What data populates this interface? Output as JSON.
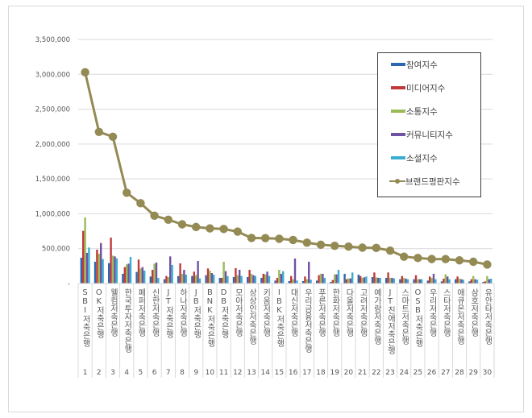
{
  "chart_data": {
    "type": "bar+line",
    "title": "",
    "xlabel": "",
    "ylabel": "",
    "ylim": [
      0,
      3500000
    ],
    "yticks": [
      0,
      500000,
      1000000,
      1500000,
      2000000,
      2500000,
      3000000,
      3500000
    ],
    "ytick_labels": [
      "-",
      "500,000",
      "1,000,000",
      "1,500,000",
      "2,000,000",
      "2,500,000",
      "3,000,000",
      "3,500,000"
    ],
    "grid": true,
    "legend_position": "upper right (inside)",
    "categories": [
      "SBI저축은행",
      "OK저축은행",
      "웰컴저축은행",
      "한국투자저축은행",
      "페퍼저축은행",
      "신한저축은행",
      "JT저축은행",
      "하나저축은행",
      "JB저축은행",
      "BNK저축은행",
      "DB저축은행",
      "모아저축은행",
      "상상인저축은행",
      "키움저축은행",
      "IBK저축은행",
      "대신저축은행",
      "우리금융저축은행",
      "푸른저축은행",
      "한화저축은행",
      "다올저축은행",
      "고려저축은행",
      "예가람저축은행",
      "JT친애저축은행",
      "스마트저축은행",
      "OSB저축은행",
      "우리저축은행",
      "스타저축은행",
      "애큐온저축은행",
      "삼호저축은행",
      "유안타저축은행"
    ],
    "ranks": [
      "1",
      "2",
      "3",
      "4",
      "5",
      "6",
      "7",
      "8",
      "9",
      "10",
      "11",
      "12",
      "13",
      "14",
      "15",
      "16",
      "17",
      "18",
      "19",
      "20",
      "21",
      "22",
      "23",
      "24",
      "25",
      "26",
      "27",
      "28",
      "29",
      "30"
    ],
    "series": [
      {
        "name": "참여지수",
        "type": "bar",
        "color": "#2e67b1",
        "values": [
          370000,
          312000,
          292000,
          139000,
          166000,
          100000,
          61000,
          107000,
          107000,
          119000,
          81000,
          92000,
          92000,
          81000,
          42000,
          35000,
          35000,
          42000,
          23000,
          139000,
          127000,
          92000,
          81000,
          61000,
          61000,
          42000,
          31000,
          61000,
          31000,
          23000
        ]
      },
      {
        "name": "미디어지수",
        "type": "bar",
        "color": "#c0393b",
        "values": [
          755000,
          485000,
          658000,
          235000,
          343000,
          196000,
          107000,
          289000,
          170000,
          216000,
          81000,
          220000,
          196000,
          139000,
          81000,
          107000,
          100000,
          119000,
          50000,
          61000,
          107000,
          158000,
          158000,
          107000,
          119000,
          100000,
          69000,
          100000,
          61000,
          31000
        ]
      },
      {
        "name": "소통지수",
        "type": "bar",
        "color": "#9bbb59",
        "values": [
          947000,
          427000,
          400000,
          274000,
          216000,
          285000,
          92000,
          139000,
          119000,
          185000,
          312000,
          119000,
          139000,
          131000,
          196000,
          61000,
          61000,
          139000,
          131000,
          73000,
          81000,
          89000,
          81000,
          81000,
          61000,
          81000,
          131000,
          69000,
          107000,
          107000
        ]
      },
      {
        "name": "커뮤니티지수",
        "type": "bar",
        "color": "#7151a1",
        "values": [
          440000,
          580000,
          389000,
          285000,
          235000,
          300000,
          389000,
          196000,
          323000,
          150000,
          177000,
          196000,
          119000,
          170000,
          139000,
          358000,
          312000,
          139000,
          131000,
          73000,
          89000,
          81000,
          81000,
          69000,
          61000,
          139000,
          100000,
          61000,
          61000,
          61000
        ]
      },
      {
        "name": "소셜지수",
        "type": "bar",
        "color": "#3aaed0",
        "values": [
          516000,
          350000,
          362000,
          381000,
          185000,
          81000,
          266000,
          127000,
          73000,
          127000,
          107000,
          108000,
          108000,
          108000,
          177000,
          42000,
          54000,
          81000,
          196000,
          158000,
          100000,
          81000,
          73000,
          61000,
          61000,
          61000,
          61000,
          54000,
          54000,
          69000
        ]
      },
      {
        "name": "브랜드평판지수",
        "type": "line",
        "color": "#948a54",
        "values": [
          3030000,
          2174000,
          2105000,
          1302000,
          1151000,
          973000,
          915000,
          849000,
          810000,
          790000,
          782000,
          744000,
          653000,
          650000,
          642000,
          624000,
          586000,
          556000,
          541000,
          529000,
          514000,
          510000,
          472000,
          385000,
          366000,
          351000,
          350000,
          332000,
          312000,
          272000
        ]
      }
    ]
  },
  "legend": {
    "items": [
      {
        "label": "참여지수",
        "color": "#2e67b1"
      },
      {
        "label": "미디어지수",
        "color": "#c0393b"
      },
      {
        "label": "소통지수",
        "color": "#9bbb59"
      },
      {
        "label": "커뮤니티지수",
        "color": "#7151a1"
      },
      {
        "label": "소셜지수",
        "color": "#3aaed0"
      },
      {
        "label": "브랜드평판지수",
        "color": "#948a54"
      }
    ]
  }
}
